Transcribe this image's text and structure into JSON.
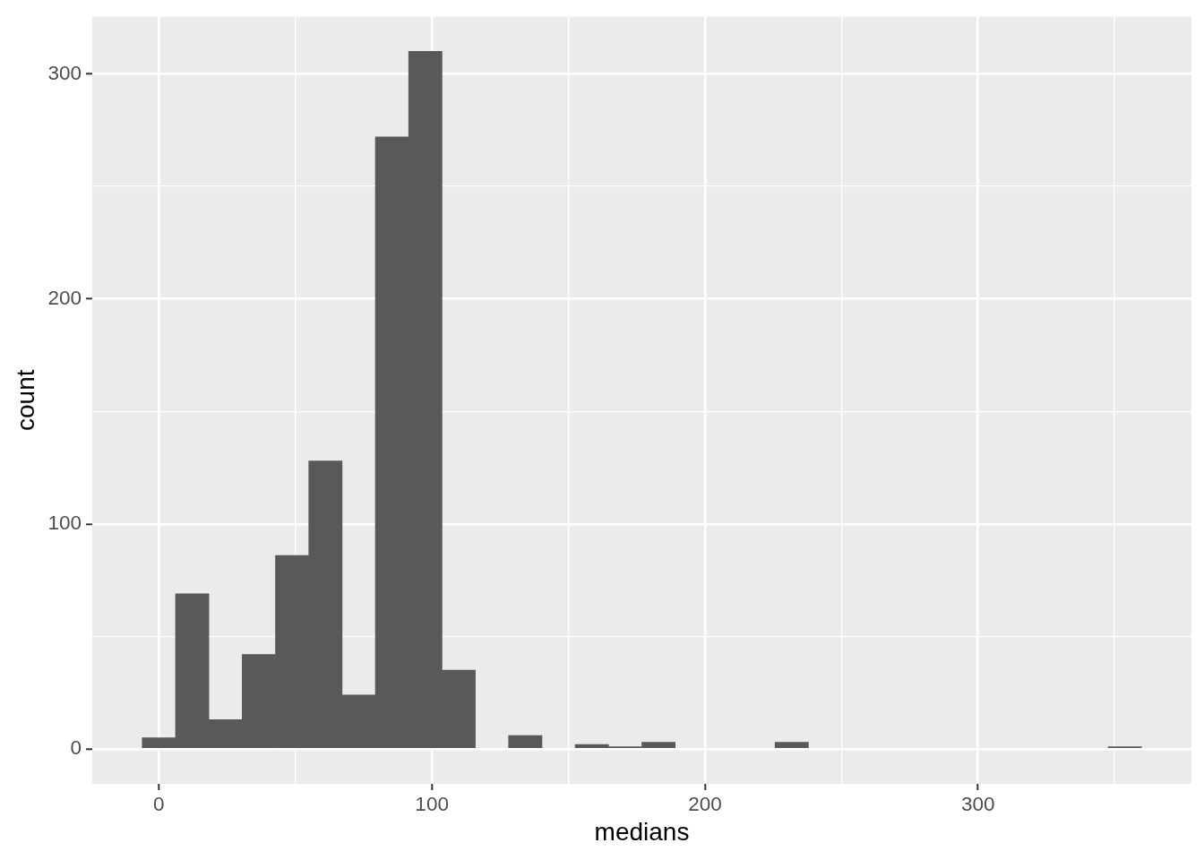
{
  "chart_data": {
    "type": "histogram",
    "xlabel": "medians",
    "ylabel": "count",
    "bins": [
      -6.1,
      6.1,
      18.3,
      30.5,
      42.7,
      54.9,
      67.1,
      79.3,
      91.5,
      103.7,
      115.9,
      128.1,
      140.3,
      152.5,
      164.7,
      176.9,
      189.1,
      201.3,
      213.5,
      225.7,
      237.9,
      250.1,
      262.3,
      274.5,
      286.7,
      298.9,
      311.1,
      323.3,
      335.5,
      347.7,
      359.9
    ],
    "values": [
      5,
      69,
      13,
      42,
      86,
      128,
      24,
      272,
      310,
      35,
      0,
      6,
      0,
      2,
      1,
      3,
      0,
      0,
      0,
      3,
      0,
      0,
      0,
      0,
      0,
      0,
      0,
      0,
      0,
      1
    ],
    "color": "#595959",
    "xlim": [
      -24.4,
      378.2
    ],
    "ylim": [
      -15.5,
      325.5
    ],
    "xticks": [
      0,
      {
        "value": 50,
        "label": null
      },
      100,
      {
        "value": 150,
        "label": null
      },
      200,
      {
        "value": 250,
        "label": null
      },
      300,
      {
        "value": 350,
        "label": null
      }
    ],
    "yticks": [
      0,
      {
        "value": 50,
        "label": null
      },
      100,
      {
        "value": 150,
        "label": null
      },
      200,
      {
        "value": 250,
        "label": null
      },
      300
    ],
    "grid": true
  }
}
